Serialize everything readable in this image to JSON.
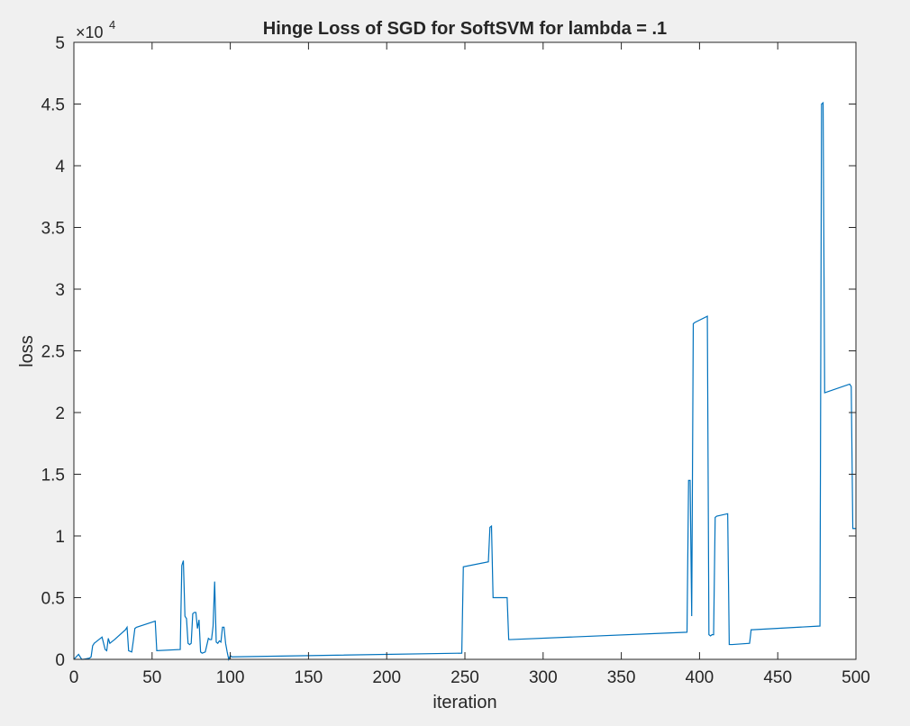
{
  "chart_data": {
    "type": "line",
    "title": "Hinge Loss of SGD for SoftSVM for lambda = .1",
    "xlabel": "iteration",
    "ylabel": "loss",
    "xlim": [
      0,
      500
    ],
    "ylim": [
      0,
      50000
    ],
    "y_exponent_label": "×10",
    "y_exponent_power": "4",
    "x_ticks": [
      0,
      50,
      100,
      150,
      200,
      250,
      300,
      350,
      400,
      450,
      500
    ],
    "x_tick_labels": [
      "0",
      "50",
      "100",
      "150",
      "200",
      "250",
      "300",
      "350",
      "400",
      "450",
      "500"
    ],
    "y_ticks": [
      0,
      5000,
      10000,
      15000,
      20000,
      25000,
      30000,
      35000,
      40000,
      45000,
      50000
    ],
    "y_tick_labels": [
      "0",
      "0.5",
      "1",
      "1.5",
      "2",
      "2.5",
      "3",
      "3.5",
      "4",
      "4.5",
      "5"
    ],
    "grid": false,
    "series": [
      {
        "color": "#0072BD",
        "x": [
          0,
          3,
          5,
          6,
          8,
          10,
          11,
          12,
          13,
          14,
          18,
          20,
          21,
          22,
          23,
          24,
          25,
          26,
          33,
          34,
          35,
          37,
          38,
          39,
          40,
          52,
          53,
          68,
          69,
          70,
          71,
          72,
          73,
          74,
          75,
          76,
          77,
          78,
          79,
          80,
          81,
          82,
          84,
          86,
          87,
          88,
          89,
          90,
          91,
          92,
          93,
          94,
          95,
          96,
          97,
          98,
          99,
          100,
          101,
          248,
          249,
          265,
          266,
          267,
          268,
          277,
          278,
          279,
          392,
          393,
          394,
          395,
          396,
          397,
          405,
          406,
          407,
          408,
          409,
          410,
          411,
          418,
          419,
          420,
          421,
          432,
          433,
          434,
          477,
          478,
          479,
          480,
          496,
          497,
          498,
          499,
          500
        ],
        "y": [
          0,
          400,
          0,
          0,
          50,
          100,
          200,
          1100,
          1300,
          1400,
          1800,
          800,
          700,
          1700,
          1300,
          1400,
          1500,
          1600,
          2400,
          2600,
          700,
          600,
          1500,
          2500,
          2600,
          3100,
          700,
          800,
          7600,
          8000,
          3500,
          3300,
          1300,
          1200,
          1300,
          3700,
          3800,
          3800,
          2500,
          3200,
          600,
          500,
          600,
          1700,
          1600,
          1600,
          2700,
          6300,
          1400,
          1300,
          1500,
          1400,
          2600,
          2600,
          1300,
          600,
          0,
          300,
          200,
          500,
          7500,
          7900,
          10700,
          10800,
          5000,
          5000,
          1600,
          1600,
          2200,
          14500,
          14500,
          3500,
          27200,
          27300,
          27800,
          2000,
          1900,
          2000,
          2000,
          11500,
          11600,
          11800,
          1200,
          1200,
          1200,
          1300,
          2400,
          2400,
          2700,
          45000,
          45100,
          21600,
          22300,
          22100,
          10600,
          10600,
          10600
        ]
      }
    ]
  }
}
